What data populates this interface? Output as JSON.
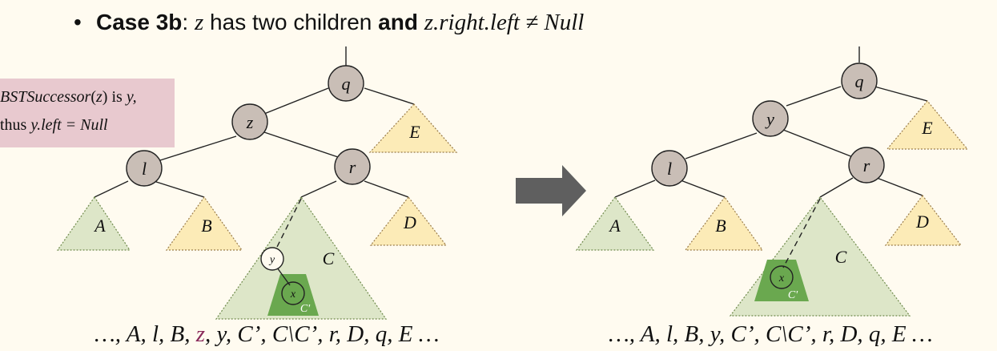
{
  "title": {
    "bullet": "•",
    "case_label": "Case 3b",
    "colon": ":",
    "z_var": "z",
    "has_text": " has two children ",
    "and_text": "and",
    "condition": "z.right.left ≠ Null"
  },
  "note": {
    "line1_var": "BSTSuccessor",
    "line1_paren_open": "(",
    "line1_z": "z",
    "line1_paren_close": ")",
    "line1_is": " is ",
    "line1_y": "y,",
    "line2_thus": "thus ",
    "line2_expr": "y.left = Null"
  },
  "before_tree": {
    "nodes": {
      "root": "q",
      "left": "z",
      "left_left": "l",
      "left_right": "r",
      "successor": "y",
      "successor_child": "x"
    },
    "subtrees": {
      "A": "A",
      "B": "B",
      "C": "C",
      "C_prime": "C'",
      "D": "D",
      "E": "E"
    },
    "sequence": {
      "pre": "…, A, l, B, ",
      "z": "z",
      "post": ", y, C’, C\\C’, r, D, q, E …"
    }
  },
  "after_tree": {
    "nodes": {
      "root": "q",
      "left": "y",
      "left_left": "l",
      "left_right": "r",
      "successor_child": "x"
    },
    "subtrees": {
      "A": "A",
      "B": "B",
      "C": "C",
      "C_prime": "C'",
      "D": "D",
      "E": "E"
    },
    "sequence": "…, A, l, B, y, C’, C\\C’, r, D, q, E …"
  },
  "colors": {
    "background": "#fffbf0",
    "node_fill": "#c9beb6",
    "yellow_subtree": "#fcebb7",
    "green_subtree": "#dde6c8",
    "c_prime_fill": "#6aa84f",
    "note_box": "#e8c9cf",
    "arrow": "#5f5f5f",
    "z_highlight": "#8a2a5a"
  },
  "icons": {
    "transform_arrow": "right-arrow-icon"
  }
}
